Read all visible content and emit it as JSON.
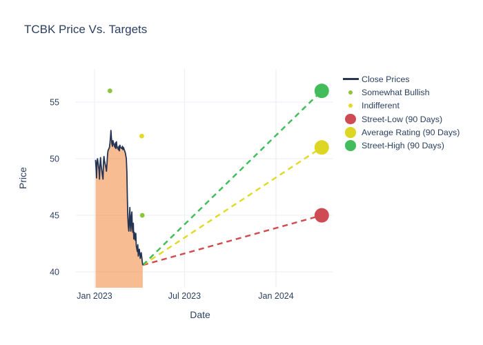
{
  "chart_data": {
    "type": "line",
    "title": "TCBK Price Vs. Targets",
    "xlabel": "Date",
    "ylabel": "Price",
    "grid": true,
    "legend_position": "right-outside",
    "background": "#ffffff",
    "gridline_color": "#e9eef6",
    "text_color": "#2a3f5f",
    "x_axis": {
      "unit": "days-since-2023-01-01",
      "range_days": [
        -37.5,
        478.8
      ],
      "ticks": [
        {
          "label": "Jan 2023",
          "day": 0
        },
        {
          "label": "Jul 2023",
          "day": 181
        },
        {
          "label": "Jan 2024",
          "day": 365
        }
      ]
    },
    "y_axis": {
      "range": [
        38.6,
        57.93
      ],
      "ticks": [
        40,
        45,
        50,
        55
      ]
    },
    "close_series": {
      "name": "Close Prices",
      "line_color": "#243452",
      "fill_color": "rgba(242,133,57,0.55)",
      "points": [
        [
          2,
          49.9
        ],
        [
          3,
          49.2
        ],
        [
          4,
          48.3
        ],
        [
          5,
          49.7
        ],
        [
          6,
          50.0
        ],
        [
          9,
          49.0
        ],
        [
          10,
          48.2
        ],
        [
          11,
          49.4
        ],
        [
          12,
          50.1
        ],
        [
          13,
          49.5
        ],
        [
          16,
          48.5
        ],
        [
          17,
          48.2
        ],
        [
          18,
          49.7
        ],
        [
          19,
          50.2
        ],
        [
          20,
          49.8
        ],
        [
          23,
          49.2
        ],
        [
          24,
          48.9
        ],
        [
          25,
          49.5
        ],
        [
          26,
          50.3
        ],
        [
          27,
          50.7
        ],
        [
          30,
          51.0
        ],
        [
          31,
          51.4
        ],
        [
          32,
          51.9
        ],
        [
          33,
          52.5
        ],
        [
          34,
          51.8
        ],
        [
          35,
          51.3
        ],
        [
          36,
          51.1
        ],
        [
          37,
          51.6
        ],
        [
          38,
          51.4
        ],
        [
          41,
          51.0
        ],
        [
          42,
          51.4
        ],
        [
          43,
          50.9
        ],
        [
          44,
          51.5
        ],
        [
          45,
          51.1
        ],
        [
          48,
          50.8
        ],
        [
          49,
          51.1
        ],
        [
          50,
          50.7
        ],
        [
          51,
          51.2
        ],
        [
          52,
          51.0
        ],
        [
          55,
          50.9
        ],
        [
          56,
          51.1
        ],
        [
          57,
          50.8
        ],
        [
          58,
          51.0
        ],
        [
          59,
          50.9
        ],
        [
          62,
          50.5
        ],
        [
          64,
          50.0
        ],
        [
          65,
          48.8
        ],
        [
          66,
          46.5
        ],
        [
          67,
          44.8
        ],
        [
          68,
          44.0
        ],
        [
          69,
          43.6
        ],
        [
          70,
          44.9
        ],
        [
          71,
          45.7
        ],
        [
          72,
          44.1
        ],
        [
          73,
          43.6
        ],
        [
          74,
          44.9
        ],
        [
          75,
          45.3
        ],
        [
          76,
          43.9
        ],
        [
          77,
          43.5
        ],
        [
          78,
          44.3
        ],
        [
          79,
          42.9
        ],
        [
          80,
          43.5
        ],
        [
          82,
          42.8
        ],
        [
          83,
          43.4
        ],
        [
          84,
          42.3
        ],
        [
          86,
          41.8
        ],
        [
          87,
          42.4
        ],
        [
          88,
          41.4
        ],
        [
          90,
          42.0
        ],
        [
          92,
          41.2
        ],
        [
          94,
          41.7
        ],
        [
          96,
          40.9
        ],
        [
          97,
          40.6
        ]
      ]
    },
    "rating_series": [
      {
        "name": "Somewhat Bullish",
        "color": "#8cc63a",
        "points": [
          [
            31,
            56
          ],
          [
            96,
            45
          ]
        ]
      },
      {
        "name": "Indifferent",
        "color": "#e2da26",
        "points": [
          [
            95,
            52
          ]
        ]
      }
    ],
    "projection_origin": [
      97,
      40.6
    ],
    "target_series": [
      {
        "name": "Street-Low (90 Days)",
        "color": "#cf4b54",
        "line_color": "#d24b50",
        "day": 457,
        "price": 45
      },
      {
        "name": "Average Rating (90 Days)",
        "color": "#ddd622",
        "line_color": "#e0da28",
        "day": 457,
        "price": 51
      },
      {
        "name": "Street-High (90 Days)",
        "color": "#43bd5b",
        "line_color": "#43bd5b",
        "day": 457,
        "price": 56
      }
    ]
  },
  "legend": {
    "items": [
      {
        "label": "Close Prices",
        "swatch": "line",
        "color": "#243452"
      },
      {
        "label": "Somewhat Bullish",
        "swatch": "dot-small",
        "color": "#8cc63a"
      },
      {
        "label": "Indifferent",
        "swatch": "dot-small",
        "color": "#e2da26"
      },
      {
        "label": "Street-Low (90 Days)",
        "swatch": "dot-big",
        "color": "#cf4b54"
      },
      {
        "label": "Average Rating (90 Days)",
        "swatch": "dot-big",
        "color": "#ddd622"
      },
      {
        "label": "Street-High (90 Days)",
        "swatch": "dot-big",
        "color": "#43bd5b"
      }
    ]
  }
}
